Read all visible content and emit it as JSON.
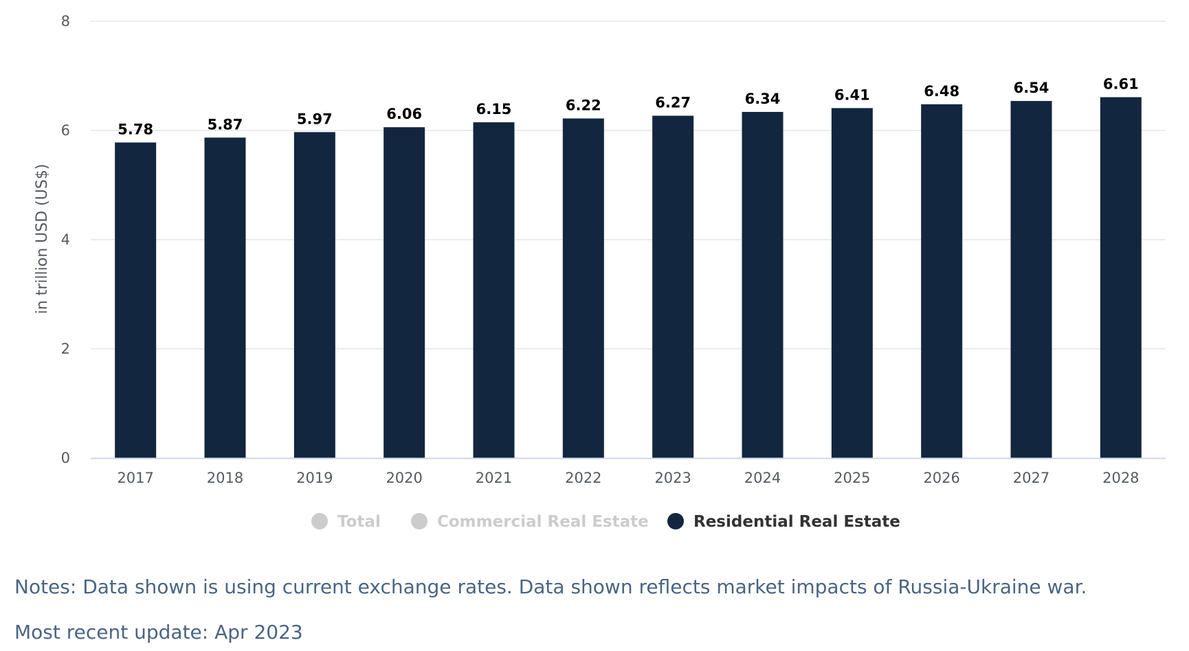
{
  "chart_data": {
    "type": "bar",
    "categories": [
      "2017",
      "2018",
      "2019",
      "2020",
      "2021",
      "2022",
      "2023",
      "2024",
      "2025",
      "2026",
      "2027",
      "2028"
    ],
    "series": [
      {
        "name": "Residential Real Estate",
        "values": [
          5.78,
          5.87,
          5.97,
          6.06,
          6.15,
          6.22,
          6.27,
          6.34,
          6.41,
          6.48,
          6.54,
          6.61
        ],
        "value_labels": [
          "5.78",
          "5.87",
          "5.97",
          "6.06",
          "6.15",
          "6.22",
          "6.27",
          "6.34",
          "6.41",
          "6.48",
          "6.54",
          "6.61"
        ],
        "color": "#13263f"
      }
    ],
    "ylabel": "in trillion USD (US$)",
    "ylim": [
      0,
      8
    ],
    "yticks": [
      "0",
      "2",
      "4",
      "6",
      "8"
    ],
    "grid": true,
    "legend_placement": "bottom-center"
  },
  "legend": {
    "items": [
      {
        "label": "Total",
        "color": "#cccccc",
        "active": false
      },
      {
        "label": "Commercial Real Estate",
        "color": "#cccccc",
        "active": false
      },
      {
        "label": "Residential Real Estate",
        "color": "#13263f",
        "active": true
      }
    ]
  },
  "colors": {
    "bar": "#13263f",
    "grid": "#e6e6e6",
    "axis_line": "#ccd6eb",
    "inactive_legend": "#cccccc",
    "notes_text": "#4a6483"
  },
  "notes": {
    "line1": "Notes: Data shown is using current exchange rates. Data shown reflects market impacts of Russia-Ukraine war.",
    "line2": "Most recent update: Apr 2023"
  }
}
